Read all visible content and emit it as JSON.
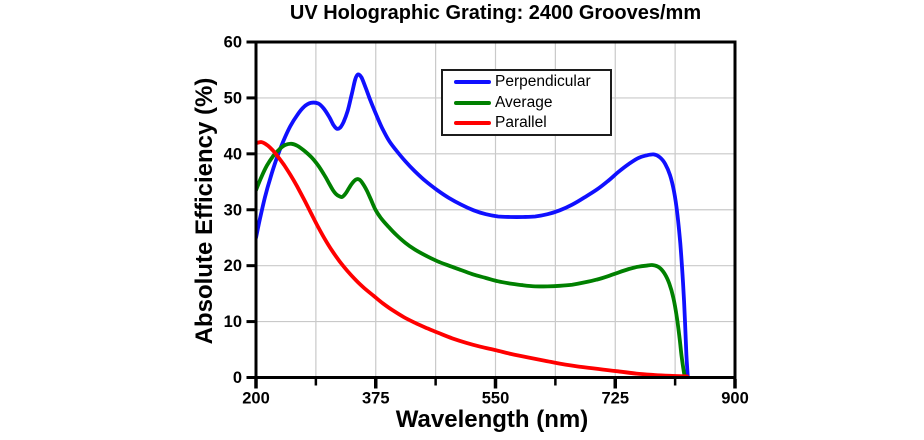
{
  "colors": {
    "background": "#ffffff",
    "axis": "#000000",
    "text": "#000000",
    "grid": "#c9c9c9",
    "legend_border": "#1c1c1c",
    "perpendicular": "#1010ff",
    "average": "#008000",
    "parallel": "#ff0000"
  },
  "chart_data": {
    "type": "line",
    "title": "UV Holographic Grating: 2400 Grooves/mm",
    "xlabel": "Wavelength (nm)",
    "ylabel": "Absolute Efficiency (%)",
    "xlim": [
      200,
      900
    ],
    "ylim": [
      0,
      60
    ],
    "grid": true,
    "x_major_ticks": [
      200,
      375,
      550,
      725,
      900
    ],
    "x_minor_ticks": [
      287.5,
      462.5,
      637.5,
      812.5
    ],
    "y_major_ticks": [
      0,
      10,
      20,
      30,
      40,
      50,
      60
    ],
    "x_gridlines": [
      287.5,
      375,
      462.5,
      550,
      637.5,
      725,
      812.5
    ],
    "y_gridlines": [
      10,
      20,
      30,
      40,
      50
    ],
    "legend": {
      "position": "top-center-inside",
      "entries": [
        "Perpendicular",
        "Average",
        "Parallel"
      ]
    },
    "series": [
      {
        "name": "Perpendicular",
        "color": "#1010ff",
        "points": [
          [
            200,
            25
          ],
          [
            206,
            28.5
          ],
          [
            213,
            32.2
          ],
          [
            221,
            35.7
          ],
          [
            230,
            39.1
          ],
          [
            240,
            42.3
          ],
          [
            250,
            44.9
          ],
          [
            260,
            46.9
          ],
          [
            270,
            48.4
          ],
          [
            280,
            49.1
          ],
          [
            291,
            49.0
          ],
          [
            299,
            48.1
          ],
          [
            307,
            46.6
          ],
          [
            313,
            45.2
          ],
          [
            318,
            44.5
          ],
          [
            323,
            44.7
          ],
          [
            328,
            45.7
          ],
          [
            334,
            47.7
          ],
          [
            340,
            50.7
          ],
          [
            345,
            53.3
          ],
          [
            349,
            54.2
          ],
          [
            354,
            53.7
          ],
          [
            360,
            51.9
          ],
          [
            367,
            49.6
          ],
          [
            375,
            47.2
          ],
          [
            384,
            44.7
          ],
          [
            394,
            42.4
          ],
          [
            405,
            40.6
          ],
          [
            418,
            38.7
          ],
          [
            432,
            36.9
          ],
          [
            448,
            35.1
          ],
          [
            465,
            33.5
          ],
          [
            482,
            32.1
          ],
          [
            500,
            30.9
          ],
          [
            518,
            29.9
          ],
          [
            536,
            29.2
          ],
          [
            554,
            28.8
          ],
          [
            572,
            28.7
          ],
          [
            590,
            28.7
          ],
          [
            608,
            28.8
          ],
          [
            626,
            29.2
          ],
          [
            644,
            29.9
          ],
          [
            662,
            30.9
          ],
          [
            680,
            32.2
          ],
          [
            698,
            33.6
          ],
          [
            714,
            35.1
          ],
          [
            730,
            36.8
          ],
          [
            745,
            38.2
          ],
          [
            758,
            39.2
          ],
          [
            770,
            39.7
          ],
          [
            781,
            39.9
          ],
          [
            790,
            39.4
          ],
          [
            798,
            38.2
          ],
          [
            805,
            36.2
          ],
          [
            811,
            33.2
          ],
          [
            816,
            29.0
          ],
          [
            820,
            24.0
          ],
          [
            824,
            17.0
          ],
          [
            827,
            10.0
          ],
          [
            829,
            4.0
          ],
          [
            831,
            0
          ]
        ]
      },
      {
        "name": "Average",
        "color": "#008000",
        "points": [
          [
            200,
            33.5
          ],
          [
            208,
            35.9
          ],
          [
            216,
            37.9
          ],
          [
            225,
            39.6
          ],
          [
            234,
            40.8
          ],
          [
            243,
            41.6
          ],
          [
            252,
            41.8
          ],
          [
            261,
            41.4
          ],
          [
            271,
            40.5
          ],
          [
            281,
            39.4
          ],
          [
            291,
            37.9
          ],
          [
            299,
            36.4
          ],
          [
            306,
            34.9
          ],
          [
            312,
            33.6
          ],
          [
            317,
            32.8
          ],
          [
            322,
            32.4
          ],
          [
            326,
            32.3
          ],
          [
            331,
            32.9
          ],
          [
            336,
            33.9
          ],
          [
            341,
            34.8
          ],
          [
            346,
            35.4
          ],
          [
            351,
            35.4
          ],
          [
            356,
            34.7
          ],
          [
            362,
            33.4
          ],
          [
            368,
            31.8
          ],
          [
            375,
            29.9
          ],
          [
            384,
            28.3
          ],
          [
            394,
            26.9
          ],
          [
            405,
            25.5
          ],
          [
            418,
            24.1
          ],
          [
            432,
            22.9
          ],
          [
            448,
            21.8
          ],
          [
            465,
            20.8
          ],
          [
            482,
            20.0
          ],
          [
            500,
            19.2
          ],
          [
            518,
            18.4
          ],
          [
            536,
            17.8
          ],
          [
            554,
            17.2
          ],
          [
            572,
            16.8
          ],
          [
            590,
            16.5
          ],
          [
            608,
            16.3
          ],
          [
            626,
            16.3
          ],
          [
            644,
            16.4
          ],
          [
            662,
            16.6
          ],
          [
            680,
            17.0
          ],
          [
            698,
            17.5
          ],
          [
            714,
            18.1
          ],
          [
            730,
            18.8
          ],
          [
            745,
            19.4
          ],
          [
            758,
            19.8
          ],
          [
            770,
            20.0
          ],
          [
            780,
            20.1
          ],
          [
            789,
            19.7
          ],
          [
            797,
            18.6
          ],
          [
            804,
            16.8
          ],
          [
            810,
            14.2
          ],
          [
            815,
            10.8
          ],
          [
            819,
            7.0
          ],
          [
            822,
            3.8
          ],
          [
            825,
            1.2
          ],
          [
            827,
            0
          ]
        ]
      },
      {
        "name": "Parallel",
        "color": "#ff0000",
        "points": [
          [
            200,
            41.9
          ],
          [
            208,
            42.1
          ],
          [
            216,
            41.6
          ],
          [
            224,
            40.7
          ],
          [
            232,
            39.5
          ],
          [
            241,
            38.0
          ],
          [
            250,
            36.3
          ],
          [
            260,
            34.2
          ],
          [
            270,
            31.9
          ],
          [
            280,
            29.5
          ],
          [
            290,
            27.1
          ],
          [
            300,
            24.9
          ],
          [
            311,
            22.7
          ],
          [
            322,
            20.8
          ],
          [
            334,
            19.0
          ],
          [
            346,
            17.4
          ],
          [
            358,
            16.0
          ],
          [
            372,
            14.6
          ],
          [
            386,
            13.2
          ],
          [
            400,
            12.0
          ],
          [
            416,
            10.8
          ],
          [
            432,
            9.8
          ],
          [
            450,
            8.8
          ],
          [
            468,
            7.9
          ],
          [
            487,
            7.0
          ],
          [
            507,
            6.2
          ],
          [
            528,
            5.5
          ],
          [
            550,
            4.9
          ],
          [
            573,
            4.2
          ],
          [
            597,
            3.6
          ],
          [
            622,
            3.0
          ],
          [
            648,
            2.4
          ],
          [
            675,
            1.9
          ],
          [
            702,
            1.5
          ],
          [
            729,
            1.1
          ],
          [
            756,
            0.7
          ],
          [
            782,
            0.45
          ],
          [
            805,
            0.3
          ],
          [
            830,
            0.2
          ]
        ]
      }
    ]
  }
}
